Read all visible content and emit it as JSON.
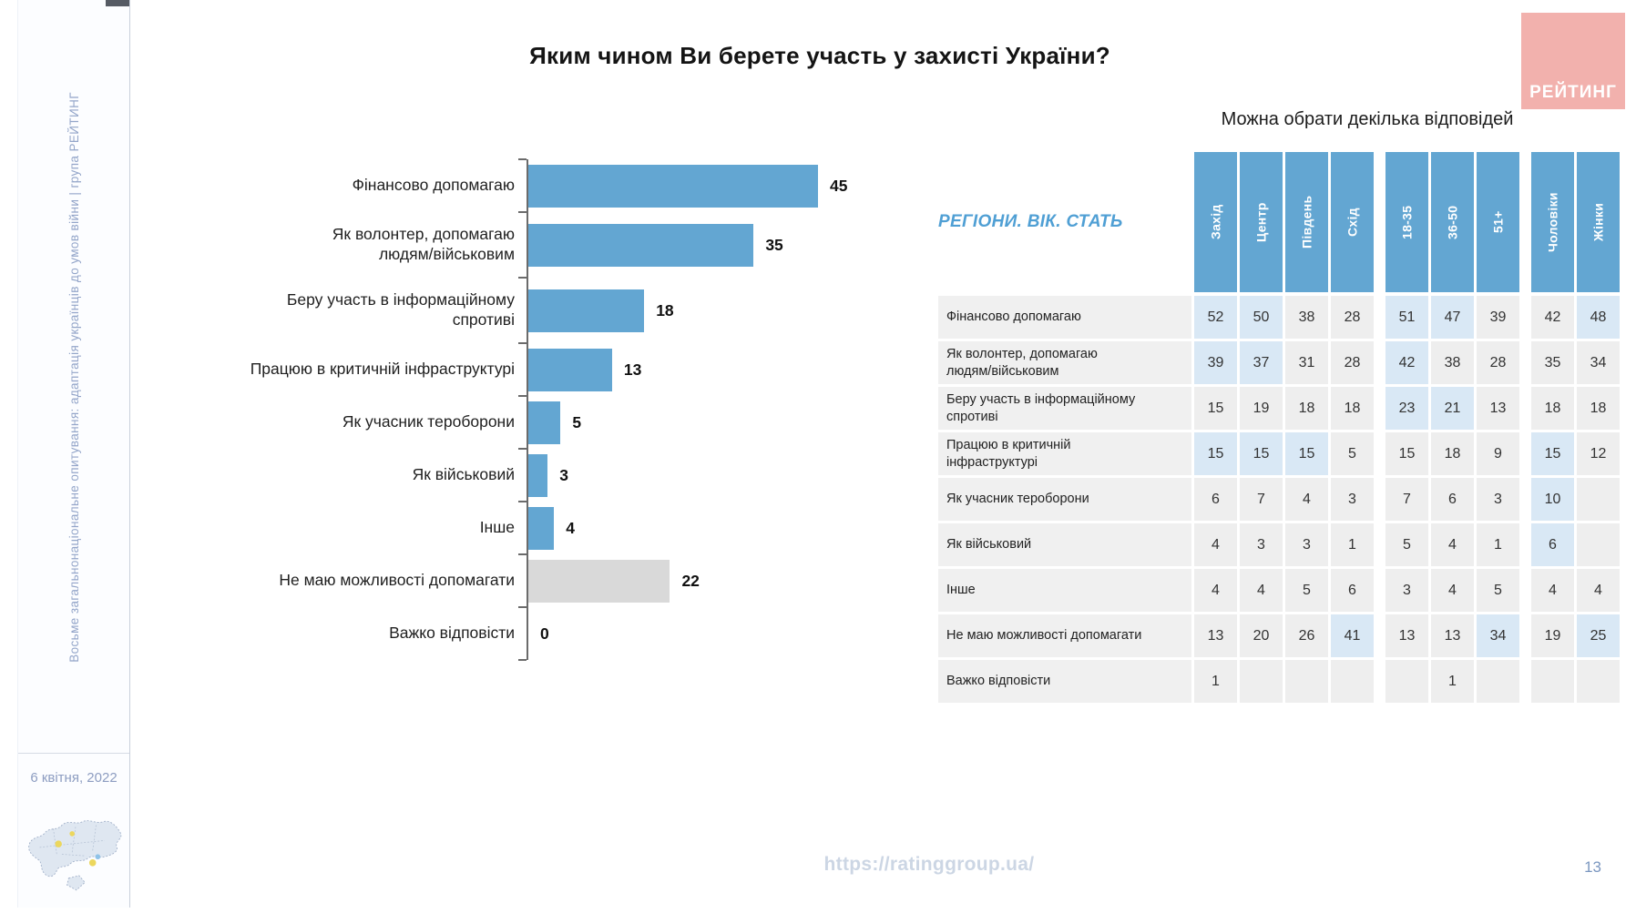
{
  "slide": {
    "title": "Яким чином Ви берете участь у захисті України?",
    "note": "Можна обрати декілька відповідей",
    "footer_url": "https://ratinggroup.ua/",
    "page_number": "13"
  },
  "sidebar": {
    "vertical_text": "Восьме загальнонаціональне опитування: адаптація українців до умов війни | група РЕЙТИНГ",
    "date": "6 квітня, 2022"
  },
  "logo": {
    "text": "РЕЙТИНГ",
    "background_color": "#f2b1ad"
  },
  "colors": {
    "bar_blue": "#63a6d2",
    "bar_gray": "#d9d9d9",
    "cell_plain": "#eeeeee",
    "cell_highlight": "#d9e8f5",
    "accent_blue": "#4f9fd4"
  },
  "chart_data": {
    "type": "bar",
    "orientation": "horizontal",
    "title": "Яким чином Ви берете участь у захисті України?",
    "subtitle": "Можна обрати декілька відповідей",
    "xlim": [
      0,
      45
    ],
    "grid": false,
    "legend": "none",
    "categories": [
      "Фінансово допомагаю",
      "Як волонтер, допомагаю\nлюдям/військовим",
      "Беру участь в інформаційному\nспротиві",
      "Працюю в критичній інфраструктурі",
      "Як учасник тероборони",
      "Як військовий",
      "Інше",
      "Не маю можливості допомагати",
      "Важко відповісти"
    ],
    "values": [
      45,
      35,
      18,
      13,
      5,
      3,
      4,
      22,
      0
    ],
    "muted": [
      false,
      false,
      false,
      false,
      false,
      false,
      false,
      true,
      false
    ]
  },
  "table": {
    "corner_label": "РЕГІОНИ. ВІК. СТАТЬ",
    "column_groups": [
      {
        "name": "regions",
        "columns": [
          "Захід",
          "Центр",
          "Південь",
          "Схід"
        ]
      },
      {
        "name": "age",
        "columns": [
          "18-35",
          "36-50",
          "51+"
        ]
      },
      {
        "name": "gender",
        "columns": [
          "Чоловіки",
          "Жінки"
        ]
      }
    ],
    "rows": [
      {
        "label": "Фінансово допомагаю",
        "values": [
          "52",
          "50",
          "38",
          "28",
          "51",
          "47",
          "39",
          "42",
          "48"
        ],
        "highlight": [
          1,
          1,
          0,
          0,
          1,
          1,
          0,
          0,
          1
        ]
      },
      {
        "label": "Як волонтер, допомагаю\nлюдям/військовим",
        "values": [
          "39",
          "37",
          "31",
          "28",
          "42",
          "38",
          "28",
          "35",
          "34"
        ],
        "highlight": [
          1,
          1,
          0,
          0,
          1,
          0,
          0,
          0,
          0
        ]
      },
      {
        "label": "Беру участь в інформаційному\nспротиві",
        "values": [
          "15",
          "19",
          "18",
          "18",
          "23",
          "21",
          "13",
          "18",
          "18"
        ],
        "highlight": [
          0,
          0,
          0,
          0,
          1,
          1,
          0,
          0,
          0
        ]
      },
      {
        "label": "Працюю в критичній\nінфраструктурі",
        "values": [
          "15",
          "15",
          "15",
          "5",
          "15",
          "18",
          "9",
          "15",
          "12"
        ],
        "highlight": [
          1,
          1,
          1,
          0,
          0,
          0,
          0,
          1,
          0
        ]
      },
      {
        "label": "Як учасник тероборони",
        "values": [
          "6",
          "7",
          "4",
          "3",
          "7",
          "6",
          "3",
          "10",
          ""
        ],
        "highlight": [
          0,
          0,
          0,
          0,
          0,
          0,
          0,
          1,
          0
        ]
      },
      {
        "label": "Як військовий",
        "values": [
          "4",
          "3",
          "3",
          "1",
          "5",
          "4",
          "1",
          "6",
          ""
        ],
        "highlight": [
          0,
          0,
          0,
          0,
          0,
          0,
          0,
          1,
          0
        ]
      },
      {
        "label": "Інше",
        "values": [
          "4",
          "4",
          "5",
          "6",
          "3",
          "4",
          "5",
          "4",
          "4"
        ],
        "highlight": [
          0,
          0,
          0,
          0,
          0,
          0,
          0,
          0,
          0
        ]
      },
      {
        "label": "Не маю можливості допомагати",
        "values": [
          "13",
          "20",
          "26",
          "41",
          "13",
          "13",
          "34",
          "19",
          "25"
        ],
        "highlight": [
          0,
          0,
          0,
          1,
          0,
          0,
          1,
          0,
          1
        ]
      },
      {
        "label": "Важко відповісти",
        "values": [
          "1",
          "",
          "",
          "",
          "",
          "1",
          "",
          "",
          ""
        ],
        "highlight": [
          0,
          0,
          0,
          0,
          0,
          0,
          0,
          0,
          0
        ]
      }
    ]
  }
}
